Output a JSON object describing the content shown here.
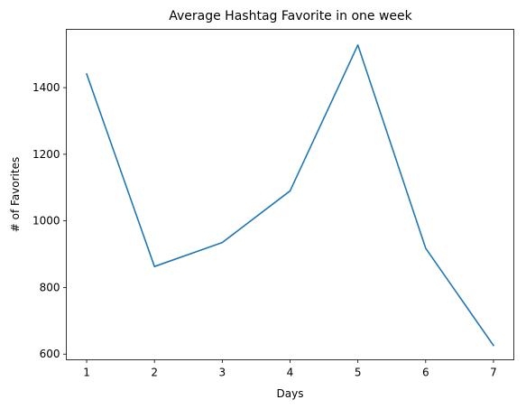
{
  "chart_data": {
    "type": "line",
    "title": "Average Hashtag Favorite in one week",
    "xlabel": "Days",
    "ylabel": "# of Favorites",
    "x": [
      1,
      2,
      3,
      4,
      5,
      6,
      7
    ],
    "xlim": [
      0.7,
      7.3
    ],
    "ylim": [
      583,
      1575
    ],
    "x_ticks": [
      1,
      2,
      3,
      4,
      5,
      6,
      7
    ],
    "y_ticks": [
      600,
      800,
      1000,
      1200,
      1400
    ],
    "grid": false,
    "line_color": "#1f77b4",
    "series": [
      {
        "values": [
          1441,
          863,
          935,
          1090,
          1528,
          918,
          626
        ]
      }
    ]
  }
}
